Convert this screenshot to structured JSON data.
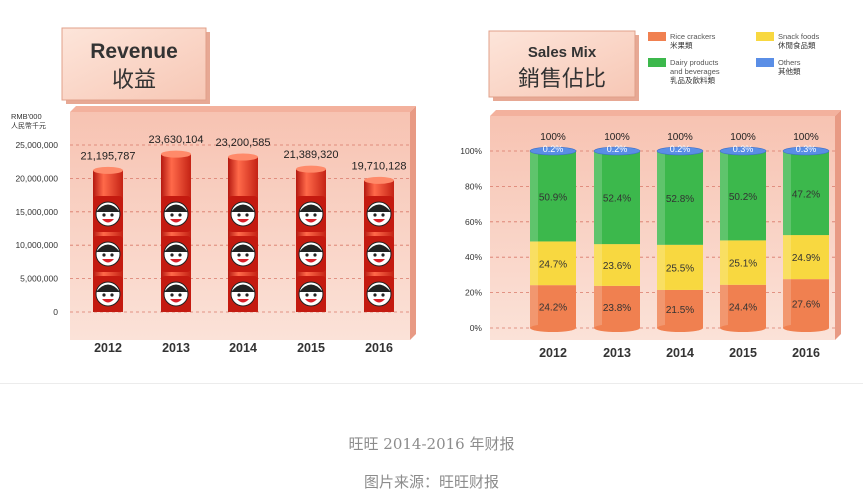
{
  "chart_data": [
    {
      "type": "bar",
      "title": "Revenue",
      "title_cn": "收益",
      "ylabel": "RMB'000",
      "ylabel_cn": "人民幣千元",
      "ylim": [
        0,
        25000000
      ],
      "y_ticks": [
        "25,000,000",
        "20,000,000",
        "15,000,000",
        "10,000,000",
        "5,000,000",
        "0"
      ],
      "categories": [
        "2012",
        "2013",
        "2014",
        "2015",
        "2016"
      ],
      "values": [
        21195787,
        23630104,
        23200585,
        21389320,
        19710128
      ],
      "value_labels": [
        "21,195,787",
        "23,630,104",
        "23,200,585",
        "21,389,320",
        "19,710,128"
      ],
      "bar_color": "#e8321e"
    },
    {
      "type": "bar",
      "stacked": true,
      "title": "Sales Mix",
      "title_cn": "銷售佔比",
      "ylim": [
        0,
        100
      ],
      "y_ticks": [
        "100%",
        "80%",
        "60%",
        "40%",
        "20%",
        "0%"
      ],
      "categories": [
        "2012",
        "2013",
        "2014",
        "2015",
        "2016"
      ],
      "totals": [
        "100%",
        "100%",
        "100%",
        "100%",
        "100%"
      ],
      "series": [
        {
          "name": "Rice crackers",
          "name_cn": "米果類",
          "color": "#f08050",
          "values": [
            24.2,
            23.8,
            21.5,
            24.4,
            27.6
          ],
          "labels": [
            "24.2%",
            "23.8%",
            "21.5%",
            "24.4%",
            "27.6%"
          ]
        },
        {
          "name": "Snack foods",
          "name_cn": "休閒食品類",
          "color": "#f8d840",
          "values": [
            24.7,
            23.6,
            25.5,
            25.1,
            24.9
          ],
          "labels": [
            "24.7%",
            "23.6%",
            "25.5%",
            "25.1%",
            "24.9%"
          ]
        },
        {
          "name": "Dairy products and beverages",
          "name_cn": "乳品及飲料類",
          "color": "#3cb84c",
          "values": [
            50.9,
            52.4,
            52.8,
            50.2,
            47.2
          ],
          "labels": [
            "50.9%",
            "52.4%",
            "52.8%",
            "50.2%",
            "47.2%"
          ]
        },
        {
          "name": "Others",
          "name_cn": "其他類",
          "color": "#5a8ee6",
          "values": [
            0.2,
            0.2,
            0.2,
            0.3,
            0.3
          ],
          "labels": [
            "0.2%",
            "0.2%",
            "0.2%",
            "0.3%",
            "0.3%"
          ]
        }
      ]
    }
  ],
  "caption": {
    "line1": "旺旺 2014-2016 年财报",
    "line2": "图片来源：旺旺财报"
  }
}
